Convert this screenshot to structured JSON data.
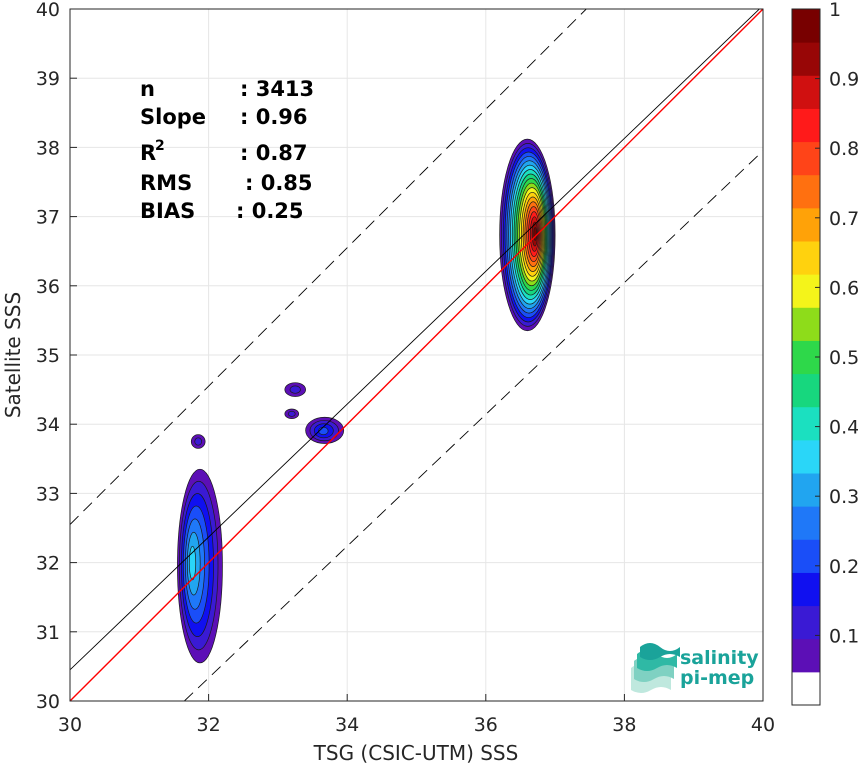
{
  "chart_data": {
    "type": "heatmap",
    "subtype": "density contour scatter",
    "xlabel": "TSG (CSIC-UTM) SSS",
    "ylabel": "Satellite SSS",
    "xlim": [
      30,
      40
    ],
    "ylim": [
      30,
      40
    ],
    "xticks": [
      "30",
      "32",
      "34",
      "36",
      "38",
      "40"
    ],
    "yticks": [
      "30",
      "31",
      "32",
      "33",
      "34",
      "35",
      "36",
      "37",
      "38",
      "39",
      "40"
    ],
    "grid": true,
    "reference_lines": [
      {
        "kind": "one-to-one",
        "color": "#ff0000",
        "points": [
          [
            30,
            30
          ],
          [
            40,
            40
          ]
        ]
      },
      {
        "kind": "regression fit",
        "color": "#000000",
        "points": [
          [
            30,
            30.45
          ],
          [
            40,
            40.05
          ]
        ]
      },
      {
        "kind": "upper bound",
        "color": "#000000",
        "style": "dashed",
        "points": [
          [
            30,
            32.55
          ],
          [
            37.45,
            40
          ]
        ]
      },
      {
        "kind": "lower bound",
        "color": "#000000",
        "style": "dashed",
        "points": [
          [
            31.65,
            30
          ],
          [
            40,
            37.95
          ]
        ]
      }
    ],
    "colorbar": {
      "ticks": [
        "0.1",
        "0.2",
        "0.3",
        "0.4",
        "0.5",
        "0.6",
        "0.7",
        "0.8",
        "0.9",
        "1"
      ],
      "range": [
        0,
        1
      ],
      "colors": [
        "#ffffff",
        "#5c0fb6",
        "#3a1ad4",
        "#1010f0",
        "#1a4ef8",
        "#1f78f8",
        "#21a5f0",
        "#2ad6f8",
        "#1be0c0",
        "#17d77e",
        "#2ed84a",
        "#8edc1a",
        "#f4f41a",
        "#ffd20e",
        "#ffa208",
        "#ff7010",
        "#ff4418",
        "#ff1a1a",
        "#d01010",
        "#980606",
        "#780000"
      ]
    },
    "clusters": [
      {
        "center": [
          36.72,
          36.75
        ],
        "extent_x": [
          36.2,
          37.0
        ],
        "extent_y": [
          35.35,
          38.12
        ],
        "peak_density": 1.0
      },
      {
        "center": [
          31.75,
          32.0
        ],
        "extent_x": [
          31.55,
          32.2
        ],
        "extent_y": [
          30.55,
          33.35
        ],
        "peak_density": 0.35
      },
      {
        "center": [
          33.65,
          33.9
        ],
        "extent_x": [
          33.4,
          33.95
        ],
        "extent_y": [
          33.72,
          34.1
        ],
        "peak_density": 0.2
      },
      {
        "center": [
          33.25,
          34.5
        ],
        "extent_x": [
          33.1,
          33.4
        ],
        "extent_y": [
          34.4,
          34.6
        ],
        "peak_density": 0.1
      },
      {
        "center": [
          31.85,
          33.75
        ],
        "extent_x": [
          31.75,
          31.95
        ],
        "extent_y": [
          33.65,
          33.85
        ],
        "peak_density": 0.1
      },
      {
        "center": [
          33.2,
          34.15
        ],
        "extent_x": [
          33.1,
          33.3
        ],
        "extent_y": [
          34.08,
          34.22
        ],
        "peak_density": 0.1
      }
    ],
    "stats": [
      {
        "label": "n",
        "value": ": 3413"
      },
      {
        "label": "Slope",
        "value": ": 0.96"
      },
      {
        "label": "R",
        "sup": "2",
        "value": ": 0.87"
      },
      {
        "label": "RMS",
        "value": ": 0.85"
      },
      {
        "label": "BIAS",
        "value": ": 0.25"
      }
    ]
  },
  "logo": {
    "line1": "salinity",
    "line2": "pi-mep",
    "colors": [
      "#1aa39a",
      "#2fb9a5",
      "#7fd1c2",
      "#bfe8de"
    ]
  }
}
